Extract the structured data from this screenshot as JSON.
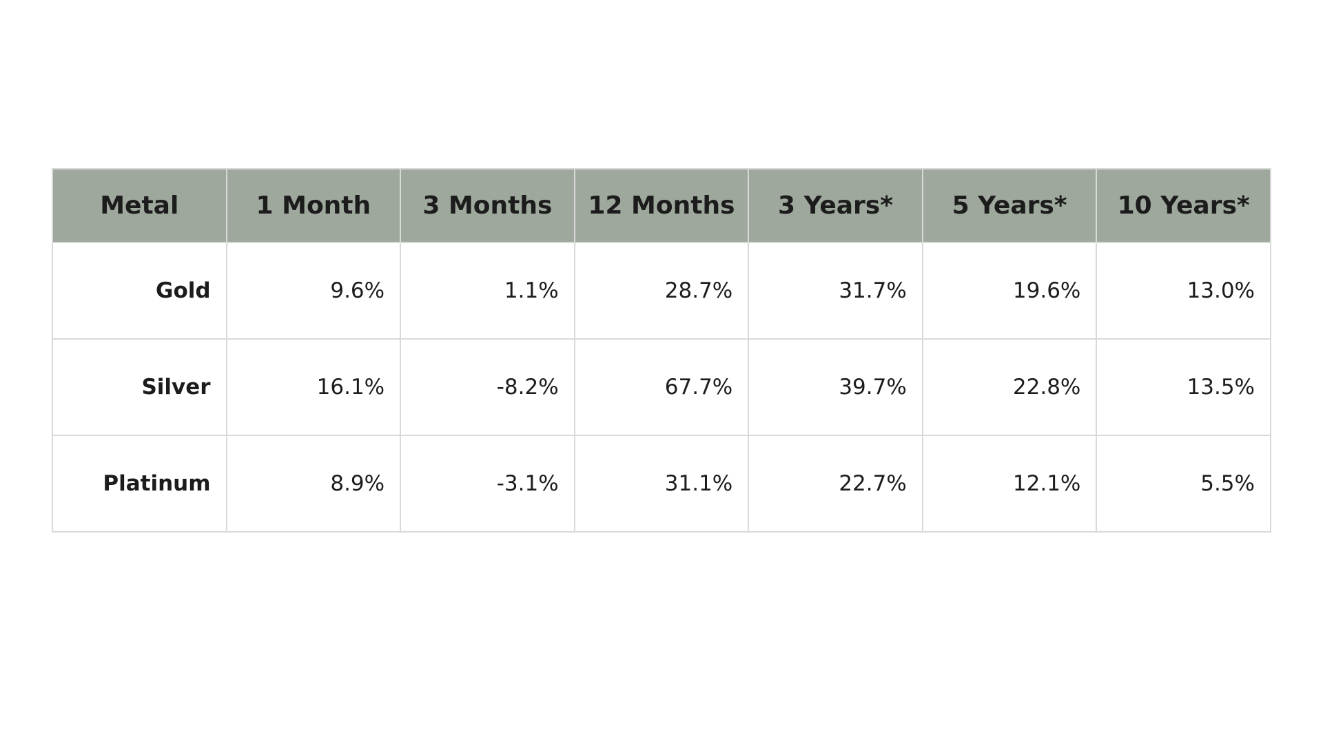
{
  "table": {
    "header": [
      "Metal",
      "1 Month",
      "3 Months",
      "12 Months",
      "3 Years*",
      "5 Years*",
      "10 Years*"
    ],
    "rows": [
      [
        "Gold",
        "9.6%",
        "1.1%",
        "28.7%",
        "31.7%",
        "19.6%",
        "13.0%"
      ],
      [
        "Silver",
        "16.1%",
        "-8.2%",
        "67.7%",
        "39.7%",
        "22.8%",
        "13.5%"
      ],
      [
        "Platinum",
        "8.9%",
        "-3.1%",
        "31.1%",
        "22.7%",
        "12.1%",
        "5.5%"
      ]
    ]
  }
}
